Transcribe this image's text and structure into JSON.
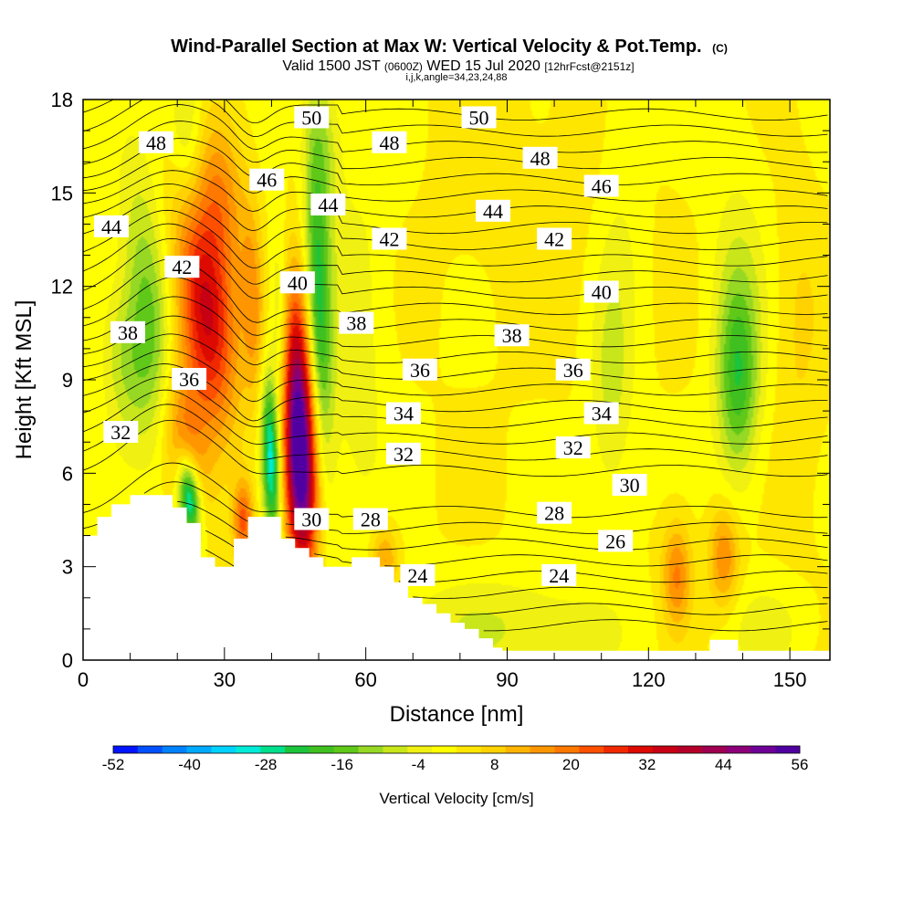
{
  "header": {
    "title": "Wind-Parallel Section at Max W: Vertical Velocity & Pot.Temp.",
    "title_mark": "(C)",
    "valid_prefix": "Valid 1500 JST",
    "valid_utc": "(0600Z)",
    "valid_date": "WED 15 Jul 2020",
    "forecast": "[12hrFcst@2151z]",
    "indices": "i,j,k,angle=34,23,24,88"
  },
  "chart_data": {
    "type": "heatmap",
    "xlabel": "Distance [nm]",
    "ylabel": "Height [Kft MSL]",
    "xlim": [
      0,
      158.5
    ],
    "ylim": [
      0,
      18
    ],
    "x_ticks": [
      0,
      30,
      60,
      90,
      120,
      150
    ],
    "y_ticks": [
      0,
      3,
      6,
      9,
      12,
      15,
      18
    ],
    "grid": false,
    "colorbar": {
      "label": "Vertical Velocity [cm/s]",
      "tick_labels": [
        -52,
        -40,
        -28,
        -16,
        -4,
        8,
        20,
        32,
        44,
        56
      ],
      "colors": [
        "#0014ff",
        "#0050ff",
        "#0082ff",
        "#00aaff",
        "#00d2ff",
        "#00ecd8",
        "#00e08c",
        "#1cc43c",
        "#40c020",
        "#60c818",
        "#96d824",
        "#c8e61a",
        "#f0f012",
        "#ffff00",
        "#ffe600",
        "#ffd200",
        "#ffb400",
        "#ff9600",
        "#ff7800",
        "#ff5000",
        "#f02800",
        "#dc0a00",
        "#c80014",
        "#b40028",
        "#a00050",
        "#8c0078",
        "#6e0096",
        "#5000a0"
      ]
    },
    "terrain": [
      [
        0,
        4
      ],
      [
        3,
        4
      ],
      [
        3,
        4.6
      ],
      [
        6,
        4.6
      ],
      [
        6,
        5
      ],
      [
        10,
        5
      ],
      [
        10,
        5.3
      ],
      [
        19,
        5.3
      ],
      [
        19,
        4.9
      ],
      [
        22,
        4.9
      ],
      [
        22,
        4.4
      ],
      [
        25,
        4.4
      ],
      [
        25,
        3.3
      ],
      [
        28,
        3.3
      ],
      [
        28,
        3
      ],
      [
        32,
        3
      ],
      [
        32,
        3.9
      ],
      [
        35,
        3.9
      ],
      [
        35,
        4.6
      ],
      [
        42,
        4.6
      ],
      [
        42,
        3.9
      ],
      [
        45,
        3.9
      ],
      [
        45,
        3.6
      ],
      [
        48,
        3.6
      ],
      [
        48,
        3.3
      ],
      [
        51,
        3.3
      ],
      [
        51,
        3
      ],
      [
        57,
        3
      ],
      [
        57,
        3.3
      ],
      [
        63,
        3.3
      ],
      [
        63,
        3
      ],
      [
        66,
        3
      ],
      [
        66,
        2.5
      ],
      [
        69,
        2.5
      ],
      [
        69,
        2
      ],
      [
        72,
        2
      ],
      [
        72,
        1.8
      ],
      [
        75,
        1.8
      ],
      [
        75,
        1.5
      ],
      [
        78,
        1.5
      ],
      [
        78,
        1.2
      ],
      [
        81,
        1.2
      ],
      [
        81,
        1
      ],
      [
        84,
        1
      ],
      [
        84,
        0.7
      ],
      [
        87,
        0.7
      ],
      [
        87,
        0.4
      ],
      [
        89,
        0.4
      ],
      [
        89,
        0.3
      ],
      [
        133,
        0.3
      ],
      [
        133,
        0.65
      ],
      [
        139,
        0.65
      ],
      [
        139,
        0.3
      ],
      [
        158.5,
        0.3
      ]
    ],
    "w_features": [
      {
        "x": 46,
        "z": 6.3,
        "sx": 2.3,
        "sz": 2.4,
        "tilt": -0.22,
        "w": 58
      },
      {
        "x": 45,
        "z": 10.0,
        "sx": 2.5,
        "sz": 2.2,
        "tilt": -0.22,
        "w": 22
      },
      {
        "x": 26,
        "z": 11.2,
        "sx": 4.2,
        "sz": 2.6,
        "tilt": -0.55,
        "w": 34
      },
      {
        "x": 29.5,
        "z": 15.0,
        "sx": 3.5,
        "sz": 1.8,
        "tilt": -0.35,
        "w": 13
      },
      {
        "x": 21,
        "z": 7.2,
        "sx": 3.3,
        "sz": 1.6,
        "tilt": -0.6,
        "w": 15
      },
      {
        "x": 14,
        "z": 11.2,
        "sx": 3.4,
        "sz": 3.0,
        "tilt": -0.5,
        "w": -17
      },
      {
        "x": 9,
        "z": 9.5,
        "sx": 3.6,
        "sz": 1.8,
        "tilt": -0.4,
        "w": -11
      },
      {
        "x": 22.5,
        "z": 5.2,
        "sx": 1.6,
        "sz": 0.9,
        "tilt": -0.5,
        "w": -38
      },
      {
        "x": 39.8,
        "z": 6.5,
        "sx": 1.3,
        "sz": 1.8,
        "tilt": -0.2,
        "w": -34
      },
      {
        "x": 42,
        "z": 10.5,
        "sx": 1.6,
        "sz": 2.4,
        "tilt": -0.15,
        "w": -16
      },
      {
        "x": 50,
        "z": 11.5,
        "sx": 1.8,
        "sz": 3.5,
        "tilt": -0.2,
        "w": -24
      },
      {
        "x": 51,
        "z": 16.5,
        "sx": 2.4,
        "sz": 2.0,
        "tilt": -0.25,
        "w": -11
      },
      {
        "x": 22,
        "z": 17,
        "sx": 2.6,
        "sz": 1.8,
        "tilt": -0.25,
        "w": -11
      },
      {
        "x": 36,
        "z": 11.5,
        "sx": 1.6,
        "sz": 2.2,
        "tilt": -0.15,
        "w": 12
      },
      {
        "x": 34,
        "z": 4.5,
        "sx": 1.5,
        "sz": 0.9,
        "tilt": 0,
        "w": 22
      },
      {
        "x": 58,
        "z": 10,
        "sx": 5,
        "sz": 5,
        "tilt": 0,
        "w": -6
      },
      {
        "x": 64,
        "z": 3.2,
        "sx": 2,
        "sz": 0.8,
        "tilt": 0,
        "w": 14
      },
      {
        "x": 88,
        "z": 1.0,
        "sx": 18,
        "sz": 1.2,
        "tilt": 0,
        "w": -8
      },
      {
        "x": 112,
        "z": 8.5,
        "sx": 3,
        "sz": 2.5,
        "tilt": 0,
        "w": -8
      },
      {
        "x": 114,
        "z": 14,
        "sx": 4,
        "sz": 4,
        "tilt": 0,
        "w": -5
      },
      {
        "x": 139,
        "z": 9.0,
        "sx": 3.0,
        "sz": 2.2,
        "tilt": 0,
        "w": -20
      },
      {
        "x": 139,
        "z": 12,
        "sx": 4.5,
        "sz": 3.5,
        "tilt": 0,
        "w": -6
      },
      {
        "x": 126,
        "z": 2.7,
        "sx": 2.2,
        "sz": 1.2,
        "tilt": 0,
        "w": 17
      },
      {
        "x": 136,
        "z": 3.3,
        "sx": 2.2,
        "sz": 1.1,
        "tilt": 0,
        "w": 16
      },
      {
        "x": 146,
        "z": 1.0,
        "sx": 6,
        "sz": 1.0,
        "tilt": 0,
        "w": -6
      },
      {
        "x": 152,
        "z": 10,
        "sx": 3.5,
        "sz": 4,
        "tilt": 0,
        "w": 4
      },
      {
        "x": 100,
        "z": 15,
        "sx": 18,
        "sz": 3,
        "tilt": 0,
        "w": 2
      }
    ],
    "contour_labels": [
      {
        "text": "48",
        "x": 15.5,
        "z": 16.6
      },
      {
        "text": "50",
        "x": 48.5,
        "z": 17.4
      },
      {
        "text": "50",
        "x": 84,
        "z": 17.4
      },
      {
        "text": "48",
        "x": 65,
        "z": 16.6
      },
      {
        "text": "48",
        "x": 97,
        "z": 16.1
      },
      {
        "text": "46",
        "x": 39,
        "z": 15.4
      },
      {
        "text": "46",
        "x": 110,
        "z": 15.2
      },
      {
        "text": "44",
        "x": 6,
        "z": 13.9
      },
      {
        "text": "44",
        "x": 52,
        "z": 14.6
      },
      {
        "text": "44",
        "x": 87,
        "z": 14.4
      },
      {
        "text": "42",
        "x": 21,
        "z": 12.6
      },
      {
        "text": "42",
        "x": 65,
        "z": 13.5
      },
      {
        "text": "42",
        "x": 100,
        "z": 13.5
      },
      {
        "text": "40",
        "x": 45.5,
        "z": 12.1
      },
      {
        "text": "40",
        "x": 110,
        "z": 11.8
      },
      {
        "text": "38",
        "x": 9.5,
        "z": 10.5
      },
      {
        "text": "38",
        "x": 58,
        "z": 10.8
      },
      {
        "text": "38",
        "x": 91,
        "z": 10.4
      },
      {
        "text": "36",
        "x": 22.5,
        "z": 9.0
      },
      {
        "text": "36",
        "x": 71.5,
        "z": 9.3
      },
      {
        "text": "36",
        "x": 104,
        "z": 9.3
      },
      {
        "text": "34",
        "x": 68,
        "z": 7.9
      },
      {
        "text": "34",
        "x": 110,
        "z": 7.9
      },
      {
        "text": "32",
        "x": 8,
        "z": 7.3
      },
      {
        "text": "32",
        "x": 68,
        "z": 6.6
      },
      {
        "text": "32",
        "x": 104,
        "z": 6.8
      },
      {
        "text": "30",
        "x": 116,
        "z": 5.6
      },
      {
        "text": "30",
        "x": 48.5,
        "z": 4.5
      },
      {
        "text": "28",
        "x": 61,
        "z": 4.5
      },
      {
        "text": "28",
        "x": 100,
        "z": 4.7
      },
      {
        "text": "26",
        "x": 113,
        "z": 3.8
      },
      {
        "text": "24",
        "x": 71,
        "z": 2.7
      },
      {
        "text": "24",
        "x": 101,
        "z": 2.7
      }
    ]
  }
}
